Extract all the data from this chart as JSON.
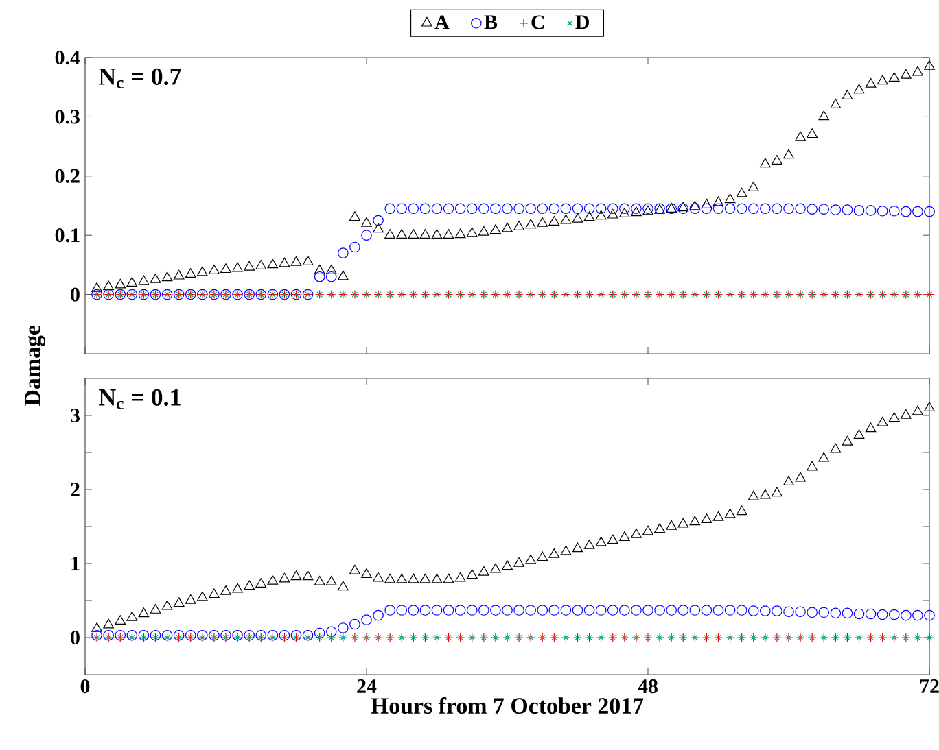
{
  "chart_data": [
    {
      "type": "scatter",
      "ylabel": "Damage",
      "annotations": [
        "**N$_{c}$ = 0.7**"
      ],
      "legend": "top",
      "tick_labels": "y",
      "x": [
        1,
        2,
        3,
        4,
        5,
        6,
        7,
        8,
        9,
        10,
        11,
        12,
        13,
        14,
        15,
        16,
        17,
        18,
        19,
        20,
        21,
        22,
        23,
        24,
        25,
        26,
        27,
        28,
        29,
        30,
        31,
        32,
        33,
        34,
        35,
        36,
        37,
        38,
        39,
        40,
        41,
        42,
        43,
        44,
        45,
        46,
        47,
        48,
        49,
        50,
        51,
        52,
        53,
        54,
        55,
        56,
        57,
        58,
        59,
        60,
        61,
        62,
        63,
        64,
        65,
        66,
        67,
        68,
        69,
        70,
        71,
        72
      ],
      "xlim": [
        0,
        72
      ],
      "xticks": [
        0,
        24,
        48,
        72
      ],
      "ylim": [
        -0.1,
        0.4
      ],
      "yticks": [
        0,
        0.1,
        0.2,
        0.3,
        0.4
      ],
      "series": [
        {
          "name": "A",
          "color": "#000000",
          "marker": "triangle",
          "values": [
            0.01,
            0.013,
            0.016,
            0.019,
            0.022,
            0.025,
            0.028,
            0.031,
            0.034,
            0.037,
            0.04,
            0.042,
            0.044,
            0.046,
            0.048,
            0.05,
            0.052,
            0.054,
            0.055,
            0.04,
            0.04,
            0.03,
            0.13,
            0.12,
            0.11,
            0.1,
            0.1,
            0.1,
            0.1,
            0.1,
            0.1,
            0.101,
            0.103,
            0.105,
            0.108,
            0.111,
            0.114,
            0.117,
            0.12,
            0.122,
            0.125,
            0.127,
            0.13,
            0.132,
            0.134,
            0.136,
            0.138,
            0.14,
            0.142,
            0.144,
            0.146,
            0.148,
            0.151,
            0.155,
            0.16,
            0.17,
            0.18,
            0.22,
            0.225,
            0.235,
            0.265,
            0.27,
            0.3,
            0.32,
            0.335,
            0.345,
            0.355,
            0.36,
            0.365,
            0.37,
            0.375,
            0.385
          ]
        },
        {
          "name": "B",
          "color": "#0000ff",
          "marker": "circle",
          "values": [
            0,
            0,
            0,
            0,
            0,
            0,
            0,
            0,
            0,
            0,
            0,
            0,
            0,
            0,
            0,
            0,
            0,
            0,
            0,
            0.03,
            0.03,
            0.07,
            0.08,
            0.1,
            0.125,
            0.145,
            0.145,
            0.145,
            0.145,
            0.145,
            0.145,
            0.145,
            0.145,
            0.145,
            0.145,
            0.145,
            0.145,
            0.145,
            0.145,
            0.145,
            0.145,
            0.145,
            0.145,
            0.145,
            0.145,
            0.145,
            0.145,
            0.145,
            0.145,
            0.145,
            0.145,
            0.145,
            0.145,
            0.145,
            0.145,
            0.145,
            0.145,
            0.145,
            0.145,
            0.145,
            0.145,
            0.144,
            0.144,
            0.143,
            0.143,
            0.142,
            0.142,
            0.141,
            0.141,
            0.14,
            0.14,
            0.14
          ]
        },
        {
          "name": "C",
          "color": "#ff0000",
          "marker": "plus",
          "values": [
            0,
            0,
            0,
            0,
            0,
            0,
            0,
            0,
            0,
            0,
            0,
            0,
            0,
            0,
            0,
            0,
            0,
            0,
            0,
            0,
            0,
            0,
            0,
            0,
            0,
            0,
            0,
            0,
            0,
            0,
            0,
            0,
            0,
            0,
            0,
            0,
            0,
            0,
            0,
            0,
            0,
            0,
            0,
            0,
            0,
            0,
            0,
            0,
            0,
            0,
            0,
            0,
            0,
            0,
            0,
            0,
            0,
            0,
            0,
            0,
            0,
            0,
            0,
            0,
            0,
            0,
            0,
            0,
            0,
            0,
            0,
            0
          ]
        },
        {
          "name": "D",
          "color": "#009e73",
          "marker": "cross",
          "values": [
            0,
            0,
            0,
            0,
            0,
            0,
            0,
            0,
            0,
            0,
            0,
            0,
            0,
            0,
            0,
            0,
            0,
            0,
            0,
            0,
            0,
            0,
            0,
            0,
            0,
            0,
            0,
            0,
            0,
            0,
            0,
            0,
            0,
            0,
            0,
            0,
            0,
            0,
            0,
            0,
            0,
            0,
            0,
            0,
            0,
            0,
            0,
            0,
            0,
            0,
            0,
            0,
            0,
            0,
            0,
            0,
            0,
            0,
            0,
            0,
            0,
            0,
            0,
            0,
            0,
            0,
            0,
            0,
            0,
            0,
            0,
            0
          ]
        }
      ]
    },
    {
      "type": "scatter",
      "xlabel": "Hours from 7 October 2017",
      "annotations": [
        "**N$_{c}$ = 0.1**"
      ],
      "x": [
        1,
        2,
        3,
        4,
        5,
        6,
        7,
        8,
        9,
        10,
        11,
        12,
        13,
        14,
        15,
        16,
        17,
        18,
        19,
        20,
        21,
        22,
        23,
        24,
        25,
        26,
        27,
        28,
        29,
        30,
        31,
        32,
        33,
        34,
        35,
        36,
        37,
        38,
        39,
        40,
        41,
        42,
        43,
        44,
        45,
        46,
        47,
        48,
        49,
        50,
        51,
        52,
        53,
        54,
        55,
        56,
        57,
        58,
        59,
        60,
        61,
        62,
        63,
        64,
        65,
        66,
        67,
        68,
        69,
        70,
        71,
        72
      ],
      "xlim": [
        0,
        72
      ],
      "xticks": [
        0,
        24,
        48,
        72
      ],
      "ylim": [
        -0.5,
        3.5
      ],
      "yticks": [
        0,
        {
          "value": 0.5,
          "label": null
        },
        1,
        {
          "value": 1.5,
          "label": null
        },
        2,
        {
          "value": 2.5,
          "label": null
        },
        3
      ],
      "series": [
        {
          "color": "#000000",
          "marker": "triangle",
          "values": [
            0.12,
            0.17,
            0.22,
            0.27,
            0.32,
            0.37,
            0.42,
            0.46,
            0.5,
            0.54,
            0.58,
            0.62,
            0.65,
            0.69,
            0.72,
            0.76,
            0.79,
            0.82,
            0.82,
            0.75,
            0.75,
            0.68,
            0.9,
            0.85,
            0.8,
            0.78,
            0.78,
            0.78,
            0.78,
            0.78,
            0.78,
            0.8,
            0.84,
            0.88,
            0.92,
            0.96,
            1.0,
            1.04,
            1.08,
            1.12,
            1.16,
            1.2,
            1.24,
            1.28,
            1.31,
            1.35,
            1.39,
            1.43,
            1.46,
            1.5,
            1.53,
            1.56,
            1.59,
            1.62,
            1.66,
            1.7,
            1.9,
            1.92,
            1.95,
            2.1,
            2.15,
            2.3,
            2.42,
            2.54,
            2.64,
            2.73,
            2.82,
            2.9,
            2.96,
            3.0,
            3.05,
            3.1
          ]
        },
        {
          "color": "#0000ff",
          "marker": "circle",
          "values": [
            0.03,
            0.03,
            0.03,
            0.03,
            0.03,
            0.03,
            0.03,
            0.03,
            0.03,
            0.03,
            0.03,
            0.03,
            0.03,
            0.03,
            0.03,
            0.03,
            0.03,
            0.03,
            0.03,
            0.06,
            0.08,
            0.13,
            0.18,
            0.24,
            0.3,
            0.37,
            0.37,
            0.37,
            0.37,
            0.37,
            0.37,
            0.37,
            0.37,
            0.37,
            0.37,
            0.37,
            0.37,
            0.37,
            0.37,
            0.37,
            0.37,
            0.37,
            0.37,
            0.37,
            0.37,
            0.37,
            0.37,
            0.37,
            0.37,
            0.37,
            0.37,
            0.37,
            0.37,
            0.37,
            0.37,
            0.37,
            0.36,
            0.36,
            0.36,
            0.35,
            0.35,
            0.34,
            0.34,
            0.33,
            0.33,
            0.32,
            0.32,
            0.31,
            0.31,
            0.3,
            0.3,
            0.3
          ]
        },
        {
          "color": "#ff0000",
          "marker": "plus",
          "values": [
            0,
            0,
            0,
            0,
            0,
            0,
            0,
            0,
            0,
            0,
            0,
            0,
            0,
            0,
            0,
            0,
            0,
            0,
            0,
            0,
            0,
            0,
            0,
            0,
            0,
            0,
            0,
            0,
            0,
            0,
            0,
            0,
            0,
            0,
            0,
            0,
            0,
            0,
            0,
            0,
            0,
            0,
            0,
            0,
            0,
            0,
            0,
            0,
            0,
            0,
            0,
            0,
            0,
            0,
            0,
            0,
            0,
            0,
            0,
            0,
            0,
            0,
            0,
            0,
            0,
            0,
            0,
            0,
            0,
            0,
            0,
            0
          ]
        },
        {
          "color": "#009e73",
          "marker": "cross",
          "values": [
            0,
            0,
            0,
            0,
            0,
            0,
            0,
            0,
            0,
            0,
            0,
            0,
            0,
            0,
            0,
            0,
            0,
            0,
            0,
            0,
            0,
            0,
            0,
            0,
            0,
            0,
            0,
            0,
            0,
            0,
            0,
            0,
            0,
            0,
            0,
            0,
            0,
            0,
            0,
            0,
            0,
            0,
            0,
            0,
            0,
            0,
            0,
            0,
            0,
            0,
            0,
            0,
            0,
            0,
            0,
            0,
            0,
            0,
            0,
            0,
            0,
            0,
            0,
            0,
            0,
            0,
            0,
            0,
            0,
            0,
            0,
            0
          ]
        }
      ]
    }
  ]
}
